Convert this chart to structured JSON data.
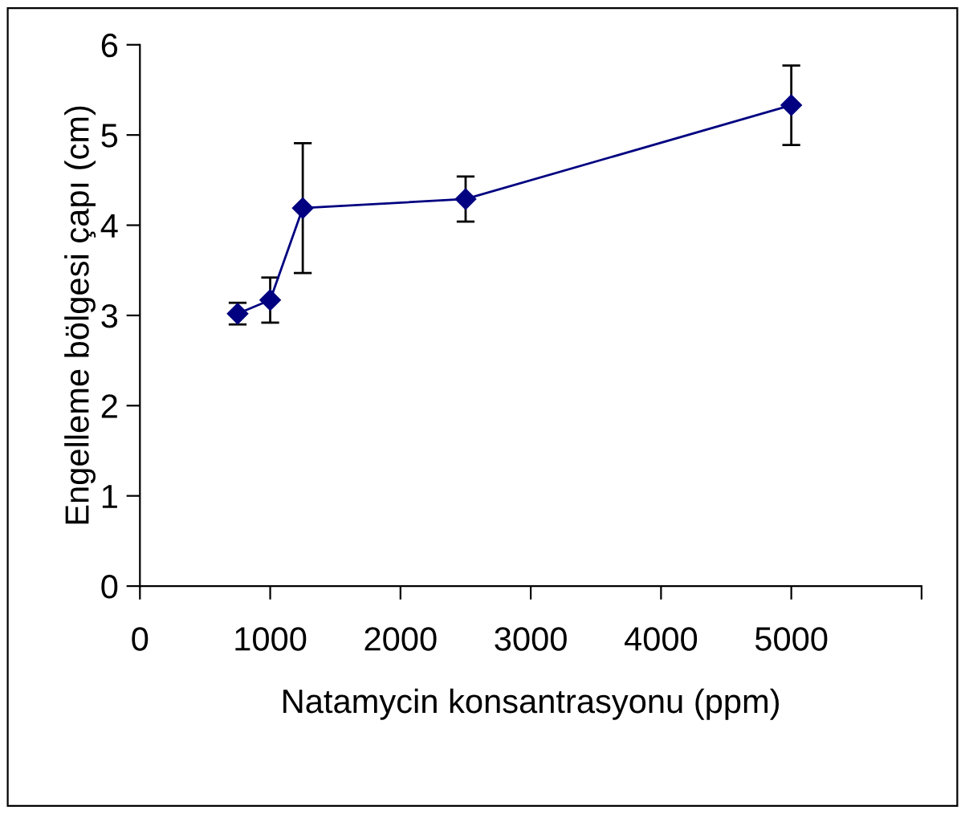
{
  "chart_data": {
    "type": "line",
    "xlabel": "Natamycin konsantrasyonu (ppm)",
    "ylabel": "Engelleme bölgesi çapı (cm)",
    "x": [
      750,
      1000,
      1250,
      2500,
      5000
    ],
    "series": [
      {
        "color": "#000080",
        "values": [
          3.02,
          3.17,
          4.19,
          4.29,
          5.33
        ],
        "errors": [
          0.12,
          0.25,
          0.72,
          0.25,
          0.44
        ]
      }
    ],
    "xlim": [
      0,
      6000
    ],
    "xticks": [
      0,
      1000,
      2000,
      3000,
      4000,
      5000,
      {
        "value": 6000,
        "label": null
      }
    ],
    "ylim": [
      0,
      6
    ],
    "yticks": [
      0,
      1,
      2,
      3,
      4,
      5,
      6
    ],
    "grid": false,
    "legend": false,
    "marker": "diamond",
    "line_style": "solid"
  }
}
